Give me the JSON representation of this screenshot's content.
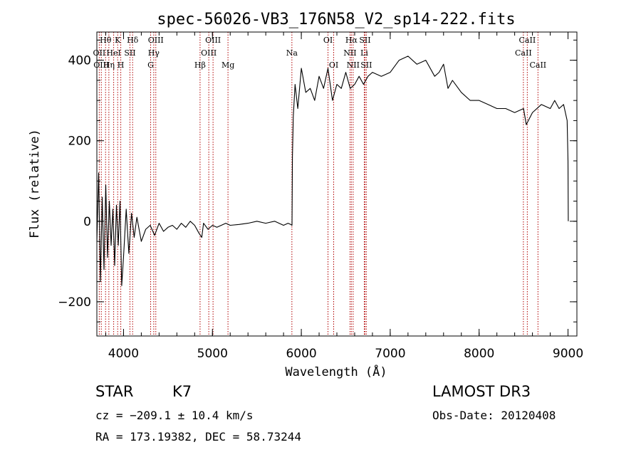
{
  "chart_data": {
    "type": "line",
    "title": "spec-56026-VB3_176N58_V2_sp14-222.fits",
    "xlabel": "Wavelength (Å)",
    "ylabel": "Flux (relative)",
    "xlim": [
      3700,
      9100
    ],
    "ylim": [
      -285,
      470
    ],
    "xticks": [
      4000,
      5000,
      6000,
      7000,
      8000,
      9000
    ],
    "yticks": [
      -200,
      0,
      200,
      400
    ],
    "series": [
      {
        "name": "flux",
        "x": [
          3700,
          3720,
          3740,
          3760,
          3780,
          3800,
          3820,
          3840,
          3860,
          3880,
          3900,
          3920,
          3940,
          3960,
          3980,
          4000,
          4030,
          4060,
          4090,
          4120,
          4150,
          4200,
          4250,
          4300,
          4350,
          4400,
          4450,
          4500,
          4550,
          4600,
          4650,
          4700,
          4750,
          4800,
          4850,
          4880,
          4900,
          4950,
          5000,
          5050,
          5100,
          5150,
          5200,
          5300,
          5400,
          5500,
          5600,
          5700,
          5800,
          5850,
          5880,
          5895,
          5900,
          5910,
          5930,
          5960,
          6000,
          6050,
          6100,
          6150,
          6200,
          6250,
          6300,
          6350,
          6400,
          6450,
          6500,
          6550,
          6600,
          6650,
          6700,
          6750,
          6800,
          6900,
          7000,
          7100,
          7200,
          7300,
          7400,
          7500,
          7550,
          7600,
          7650,
          7700,
          7800,
          7900,
          8000,
          8100,
          8200,
          8300,
          8400,
          8500,
          8530,
          8600,
          8700,
          8800,
          8850,
          8900,
          8950,
          8990,
          9000,
          9003
        ],
        "y": [
          -50,
          120,
          -150,
          60,
          -120,
          90,
          -90,
          50,
          -60,
          30,
          -110,
          40,
          -60,
          50,
          -160,
          -90,
          30,
          -80,
          20,
          -40,
          10,
          -50,
          -20,
          -10,
          -35,
          -5,
          -25,
          -15,
          -10,
          -20,
          -5,
          -15,
          0,
          -10,
          -30,
          -40,
          -5,
          -20,
          -10,
          -15,
          -10,
          -5,
          -10,
          -8,
          -5,
          0,
          -5,
          0,
          -10,
          -5,
          -8,
          -10,
          160,
          260,
          340,
          280,
          380,
          320,
          330,
          300,
          360,
          330,
          380,
          300,
          340,
          330,
          370,
          330,
          340,
          360,
          340,
          360,
          370,
          360,
          370,
          400,
          410,
          390,
          400,
          360,
          370,
          390,
          330,
          350,
          320,
          300,
          300,
          290,
          280,
          280,
          270,
          280,
          240,
          270,
          290,
          280,
          300,
          280,
          290,
          250,
          150,
          0
        ]
      }
    ],
    "spectral_lines": [
      {
        "label": "Hθ",
        "wavelength": 3798,
        "row": 1
      },
      {
        "label": "OII",
        "wavelength": 3727,
        "row": 2
      },
      {
        "label": "OIII",
        "wavelength": 3750,
        "row": 3
      },
      {
        "label": "K",
        "wavelength": 3934,
        "row": 1
      },
      {
        "label": "HeI",
        "wavelength": 3889,
        "row": 2
      },
      {
        "label": "Hη",
        "wavelength": 3835,
        "row": 3
      },
      {
        "label": "H",
        "wavelength": 3969,
        "row": 3
      },
      {
        "label": "Hδ",
        "wavelength": 4102,
        "row": 1
      },
      {
        "label": "SII",
        "wavelength": 4072,
        "row": 2
      },
      {
        "label": "OIII",
        "wavelength": 4363,
        "row": 1
      },
      {
        "label": "Hγ",
        "wavelength": 4340,
        "row": 2
      },
      {
        "label": "G",
        "wavelength": 4305,
        "row": 3
      },
      {
        "label": "OIII",
        "wavelength": 5007,
        "row": 1
      },
      {
        "label": "OIII",
        "wavelength": 4959,
        "row": 2
      },
      {
        "label": "Hβ",
        "wavelength": 4861,
        "row": 3
      },
      {
        "label": "Mg",
        "wavelength": 5175,
        "row": 3
      },
      {
        "label": "Na",
        "wavelength": 5894,
        "row": 2
      },
      {
        "label": "OI",
        "wavelength": 6300,
        "row": 1
      },
      {
        "label": "OI",
        "wavelength": 6364,
        "row": 3
      },
      {
        "label": "Hα",
        "wavelength": 6563,
        "row": 1
      },
      {
        "label": "SII",
        "wavelength": 6716,
        "row": 1
      },
      {
        "label": "NII",
        "wavelength": 6548,
        "row": 2
      },
      {
        "label": "Li",
        "wavelength": 6708,
        "row": 2
      },
      {
        "label": "NII",
        "wavelength": 6583,
        "row": 3
      },
      {
        "label": "SII",
        "wavelength": 6731,
        "row": 3
      },
      {
        "label": "CaII",
        "wavelength": 8542,
        "row": 1
      },
      {
        "label": "CaII",
        "wavelength": 8498,
        "row": 2
      },
      {
        "label": "CaII",
        "wavelength": 8662,
        "row": 3
      }
    ]
  },
  "info": {
    "class": "STAR",
    "subclass": "K7",
    "survey": "LAMOST DR3",
    "cz": "cz = −209.1 ± 10.4 km/s",
    "obs_date": "Obs-Date: 20120408",
    "coords": "RA = 173.19382, DEC =  58.73244"
  }
}
